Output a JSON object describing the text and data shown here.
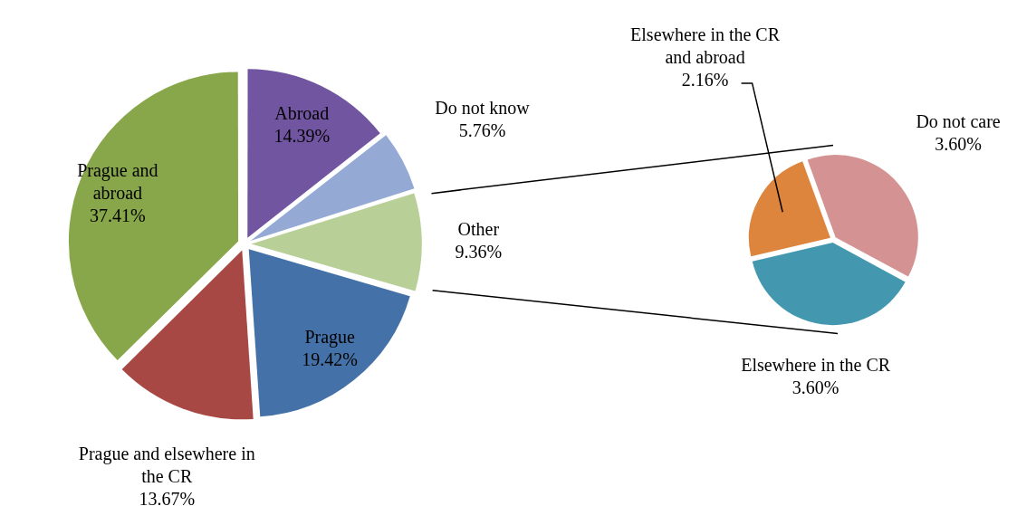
{
  "chart_data": [
    {
      "type": "pie",
      "categories": [
        "Abroad",
        "Do not know",
        "Other",
        "Prague",
        "Prague and elsewhere in the CR",
        "Prague and abroad"
      ],
      "values": [
        14.39,
        5.76,
        9.36,
        19.42,
        13.67,
        37.41
      ],
      "value_labels": [
        "14.39%",
        "5.76%",
        "9.36%",
        "19.42%",
        "13.67%",
        "37.41%"
      ],
      "colors": [
        "#7155a0",
        "#94aad4",
        "#b8cf98",
        "#4472a8",
        "#a84845",
        "#88a64a"
      ]
    },
    {
      "type": "pie",
      "categories": [
        "Do not care",
        "Elsewhere in the CR",
        "Elsewhere in the CR and abroad"
      ],
      "values": [
        3.6,
        3.6,
        2.16
      ],
      "value_labels": [
        "3.60%",
        "3.60%",
        "2.16%"
      ],
      "colors": [
        "#d49292",
        "#4398b0",
        "#dd853d"
      ]
    }
  ]
}
